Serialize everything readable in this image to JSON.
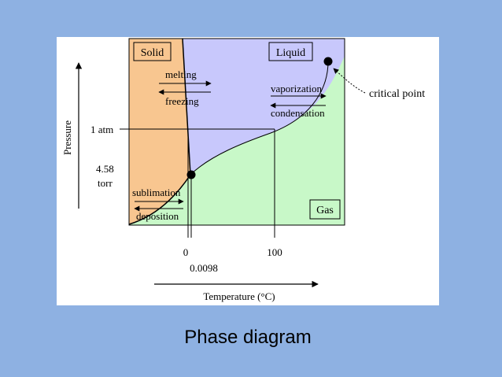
{
  "diagram": {
    "regions": {
      "solid": "Solid",
      "liquid": "Liquid",
      "gas": "Gas"
    },
    "transitions": {
      "melting": "melting",
      "freezing": "freezing",
      "vaporization": "vaporization",
      "condensation": "condensation",
      "sublimation": "sublimation",
      "deposition": "deposition"
    },
    "annotations": {
      "critical_point": "critical point"
    },
    "axes": {
      "y_label": "Pressure",
      "x_label": "Temperature (°C)",
      "pressure_ticks": [
        "1 atm",
        "4.58",
        "torr"
      ],
      "temperature_ticks": [
        "0",
        "0.0098",
        "100"
      ]
    },
    "colors": {
      "solid": "#f8c690",
      "liquid": "#c8c8fc",
      "gas": "#c8f8c8",
      "slide_background": "#8eb1e2",
      "card_background": "#ffffff"
    }
  },
  "slide": {
    "caption": "Phase diagram"
  }
}
